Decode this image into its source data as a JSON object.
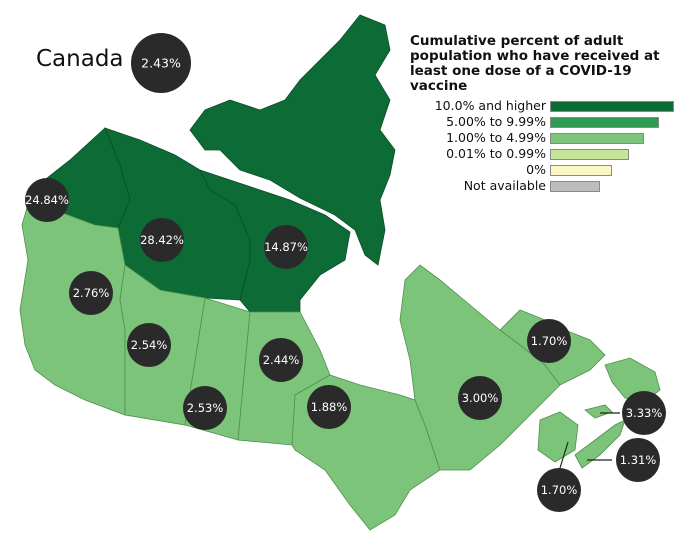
{
  "map": {
    "country": "Canada",
    "national_value": "2.43%",
    "legend": {
      "title": "Cumulative percent of adult population who have received at least one dose of a COVID-19 vaccine",
      "classes": [
        {
          "label": "10.0% and higher",
          "color": "#0d6b36",
          "bar_fraction": 1.0
        },
        {
          "label": "5.00% to 9.99%",
          "color": "#2e9a54",
          "bar_fraction": 0.88
        },
        {
          "label": "1.00% to 4.99%",
          "color": "#7cc47a",
          "bar_fraction": 0.76
        },
        {
          "label": "0.01% to 0.99%",
          "color": "#c6e49a",
          "bar_fraction": 0.64
        },
        {
          "label": "0%",
          "color": "#fcf8c6",
          "bar_fraction": 0.5
        },
        {
          "label": "Not available",
          "color": "#bdbdbd",
          "bar_fraction": 0.4
        }
      ]
    },
    "regions": [
      {
        "name": "Yukon",
        "value": "24.84%",
        "class": "10.0% and higher"
      },
      {
        "name": "Northwest Territories",
        "value": "28.42%",
        "class": "10.0% and higher"
      },
      {
        "name": "Nunavut",
        "value": "14.87%",
        "class": "10.0% and higher"
      },
      {
        "name": "British Columbia",
        "value": "2.76%",
        "class": "1.00% to 4.99%"
      },
      {
        "name": "Alberta",
        "value": "2.54%",
        "class": "1.00% to 4.99%"
      },
      {
        "name": "Saskatchewan",
        "value": "2.53%",
        "class": "1.00% to 4.99%"
      },
      {
        "name": "Manitoba",
        "value": "2.44%",
        "class": "1.00% to 4.99%"
      },
      {
        "name": "Ontario",
        "value": "1.88%",
        "class": "1.00% to 4.99%"
      },
      {
        "name": "Quebec",
        "value": "3.00%",
        "class": "1.00% to 4.99%"
      },
      {
        "name": "Newfoundland and Labrador",
        "value": "1.70%",
        "class": "1.00% to 4.99%"
      },
      {
        "name": "Prince Edward Island",
        "value": "3.33%",
        "class": "1.00% to 4.99%"
      },
      {
        "name": "Nova Scotia",
        "value": "1.31%",
        "class": "1.00% to 4.99%"
      },
      {
        "name": "New Brunswick",
        "value": "1.70%",
        "class": "1.00% to 4.99%"
      }
    ]
  }
}
